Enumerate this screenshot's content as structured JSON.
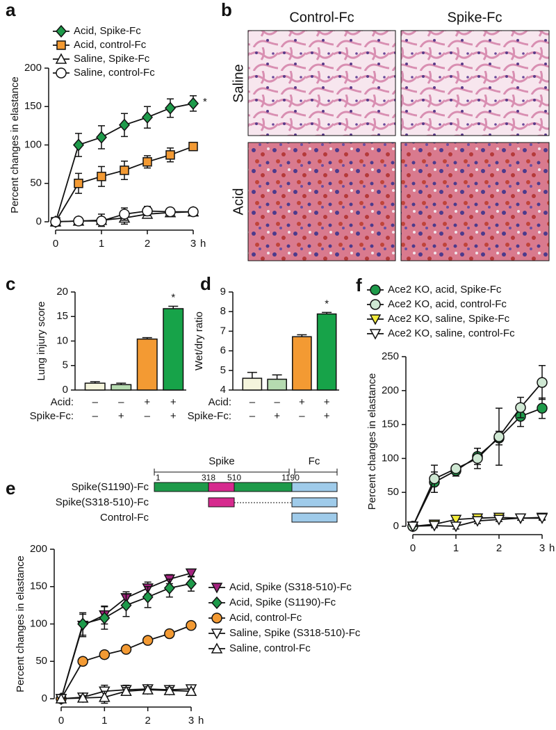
{
  "panels": [
    "a",
    "b",
    "c",
    "d",
    "e",
    "f"
  ],
  "micrographs": {
    "columns": [
      "Control-Fc",
      "Spike-Fc"
    ],
    "rows": [
      "Saline",
      "Acid"
    ]
  },
  "construct_diagram": {
    "regions": [
      "Spike",
      "Fc"
    ],
    "positions": [
      "1",
      "318",
      "510",
      "1190"
    ],
    "constructs": [
      "Spike(S1190)-Fc",
      "Spike(S318-510)-Fc",
      "Control-Fc"
    ]
  },
  "chart_data": [
    {
      "type": "line",
      "ylabel": "Percent changes in elastance",
      "xlabel": "h",
      "annotation": "*",
      "x": [
        0,
        0.5,
        1,
        1.5,
        2,
        2.5,
        3
      ],
      "xlim": [
        0,
        3
      ],
      "xticks": [
        0,
        1,
        2,
        3
      ],
      "ylim": [
        0,
        200
      ],
      "yticks": [
        0,
        50,
        100,
        150,
        200
      ],
      "series": [
        {
          "name": "Acid, Spike-Fc",
          "color": "#1e9a4a",
          "marker": "diamond",
          "values": [
            0,
            100,
            110,
            126,
            136,
            148,
            154
          ],
          "errors": [
            0,
            15,
            15,
            15,
            14,
            12,
            10
          ]
        },
        {
          "name": "Acid, control-Fc",
          "color": "#f39a33",
          "marker": "square",
          "values": [
            0,
            50,
            59,
            67,
            78,
            87,
            98
          ],
          "errors": [
            0,
            13,
            13,
            12,
            8,
            9,
            5
          ]
        },
        {
          "name": "Saline, Spike-Fc",
          "color": "#ffffff",
          "marker": "triangle",
          "values": [
            0,
            1,
            2,
            5,
            10,
            12,
            13
          ],
          "errors": [
            0,
            3,
            8,
            8,
            5,
            5,
            3
          ]
        },
        {
          "name": "Saline, control-Fc",
          "color": "#ffffff",
          "marker": "circle",
          "values": [
            0,
            1,
            1,
            10,
            14,
            13,
            13
          ],
          "errors": [
            0,
            3,
            3,
            8,
            6,
            4,
            3
          ]
        }
      ]
    },
    {
      "type": "bar",
      "ylabel": "Lung injury score",
      "ylim": [
        0,
        20
      ],
      "yticks": [
        0,
        5,
        10,
        15,
        20
      ],
      "values": [
        1.4,
        1.1,
        10.4,
        16.6
      ],
      "errors": [
        0.3,
        0.3,
        0.3,
        0.5
      ],
      "colors": [
        "#f4f4dc",
        "#b5dab0",
        "#f39a33",
        "#17a349"
      ],
      "annotation": "*",
      "table": [
        {
          "label": "Acid:",
          "cells": [
            "–",
            "–",
            "+",
            "+"
          ]
        },
        {
          "label": "Spike-Fc:",
          "cells": [
            "–",
            "+",
            "–",
            "+"
          ]
        }
      ]
    },
    {
      "type": "bar",
      "ylabel": "Wet/dry ratio",
      "ylim": [
        4,
        9
      ],
      "yticks": [
        4,
        5,
        6,
        7,
        8,
        9
      ],
      "values": [
        4.6,
        4.55,
        6.72,
        7.88
      ],
      "errors": [
        0.3,
        0.22,
        0.1,
        0.08
      ],
      "colors": [
        "#f4f4dc",
        "#b5dab0",
        "#f39a33",
        "#17a349"
      ],
      "annotation": "*",
      "table": [
        {
          "label": "Acid:",
          "cells": [
            "–",
            "–",
            "+",
            "+"
          ]
        },
        {
          "label": "Spike-Fc:",
          "cells": [
            "–",
            "+",
            "–",
            "+"
          ]
        }
      ]
    },
    {
      "type": "line",
      "ylabel": "Percent changes in elastance",
      "xlabel": "h",
      "x": [
        0,
        0.5,
        1,
        1.5,
        2,
        2.5,
        3
      ],
      "xlim": [
        0,
        3
      ],
      "xticks": [
        0,
        1,
        2,
        3
      ],
      "ylim": [
        0,
        200
      ],
      "yticks": [
        0,
        50,
        100,
        150,
        200
      ],
      "series": [
        {
          "name": "Acid, Spike (S318-510)-Fc",
          "color": "#a3237e",
          "marker": "triangle-down",
          "values": [
            0,
            98,
            112,
            135,
            148,
            160,
            168
          ],
          "errors": [
            0,
            15,
            12,
            8,
            8,
            6,
            5
          ]
        },
        {
          "name": "Acid, Spike (S1190)-Fc",
          "color": "#1e9a4a",
          "marker": "diamond",
          "values": [
            0,
            100,
            108,
            125,
            136,
            148,
            154
          ],
          "errors": [
            0,
            15,
            15,
            15,
            14,
            12,
            10
          ]
        },
        {
          "name": "Acid, control-Fc",
          "color": "#f39a33",
          "marker": "circle",
          "values": [
            0,
            50,
            59,
            66,
            78,
            87,
            98
          ],
          "errors": [
            0,
            5,
            5,
            4,
            3,
            3,
            3
          ]
        },
        {
          "name": "Saline, Spike (S318-510)-Fc",
          "color": "#ffffff",
          "marker": "triangle-down",
          "values": [
            0,
            2,
            10,
            12,
            13,
            12,
            13
          ],
          "errors": [
            0,
            3,
            8,
            6,
            5,
            4,
            3
          ]
        },
        {
          "name": "Saline, control-Fc",
          "color": "#ffffff",
          "marker": "triangle",
          "values": [
            0,
            1,
            2,
            10,
            12,
            11,
            10
          ],
          "errors": [
            0,
            3,
            8,
            5,
            4,
            4,
            3
          ]
        }
      ]
    },
    {
      "type": "line",
      "ylabel": "Percent changes in elastance",
      "xlabel": "h",
      "x": [
        0,
        0.5,
        1,
        1.5,
        2,
        2.5,
        3
      ],
      "xlim": [
        0,
        3
      ],
      "xticks": [
        0,
        1,
        2,
        3
      ],
      "ylim": [
        0,
        250
      ],
      "yticks": [
        0,
        50,
        100,
        150,
        200,
        250
      ],
      "series": [
        {
          "name": "Ace2 KO, acid, Spike-Fc",
          "color": "#1e9a4a",
          "marker": "circle",
          "values": [
            0,
            65,
            82,
            103,
            130,
            162,
            174
          ],
          "errors": [
            0,
            15,
            8,
            12,
            10,
            15,
            15
          ]
        },
        {
          "name": "Ace2 KO, acid, control-Fc",
          "color": "#cfe8d3",
          "marker": "circle",
          "values": [
            0,
            70,
            85,
            100,
            132,
            175,
            212
          ],
          "errors": [
            0,
            20,
            5,
            15,
            42,
            15,
            25
          ]
        },
        {
          "name": "Ace2 KO, saline, Spike-Fc",
          "color": "#f3ec3a",
          "marker": "triangle-down",
          "values": [
            0,
            3,
            10,
            12,
            13,
            12,
            13
          ],
          "errors": [
            0,
            3,
            5,
            4,
            3,
            3,
            3
          ]
        },
        {
          "name": "Ace2 KO, saline, control-Fc",
          "color": "#ffffff",
          "marker": "triangle-down",
          "values": [
            0,
            1,
            0,
            8,
            10,
            12,
            12
          ],
          "errors": [
            0,
            3,
            4,
            4,
            3,
            3,
            3
          ]
        }
      ]
    }
  ]
}
